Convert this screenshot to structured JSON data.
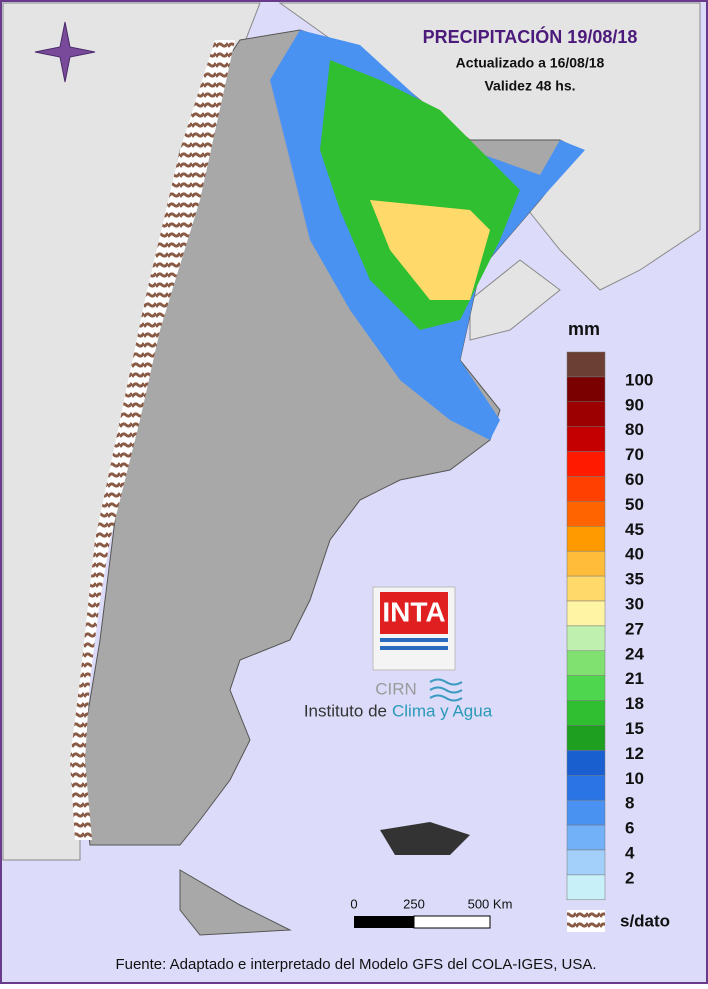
{
  "header": {
    "title": "PRECIPITACIÓN 19/08/18",
    "updated": "Actualizado a 16/08/18",
    "validity": "Validez 48 hs."
  },
  "legend": {
    "unit": "mm",
    "over_color": "#6b3f33",
    "items": [
      {
        "label": "100",
        "color": "#7a0000"
      },
      {
        "label": "90",
        "color": "#9c0000"
      },
      {
        "label": "80",
        "color": "#c40000"
      },
      {
        "label": "70",
        "color": "#ff1a00"
      },
      {
        "label": "60",
        "color": "#ff4000"
      },
      {
        "label": "50",
        "color": "#ff6400"
      },
      {
        "label": "45",
        "color": "#ff9a00"
      },
      {
        "label": "40",
        "color": "#ffbc3a"
      },
      {
        "label": "35",
        "color": "#ffda6a"
      },
      {
        "label": "30",
        "color": "#fff4a4"
      },
      {
        "label": "27",
        "color": "#bff0b0"
      },
      {
        "label": "24",
        "color": "#80e070"
      },
      {
        "label": "21",
        "color": "#4fd64f"
      },
      {
        "label": "18",
        "color": "#30bf30"
      },
      {
        "label": "15",
        "color": "#1f9f1f"
      },
      {
        "label": "12",
        "color": "#1a5fd0"
      },
      {
        "label": "10",
        "color": "#2a74e6"
      },
      {
        "label": "8",
        "color": "#4a92f2"
      },
      {
        "label": "6",
        "color": "#72b0f8"
      },
      {
        "label": "4",
        "color": "#a2d0fa"
      },
      {
        "label": "2",
        "color": "#c8f0f8"
      }
    ],
    "no_data": "s/dato"
  },
  "scale": {
    "labels": [
      "0",
      "250",
      "500 Km"
    ]
  },
  "logo": {
    "brand": "INTA",
    "center": "CIRN",
    "name_prefix": "Instituto de",
    "name_highlight": "Clima y Agua"
  },
  "footer": "Fuente: Adaptado e interpretado del Modelo GFS del COLA-IGES, USA."
}
